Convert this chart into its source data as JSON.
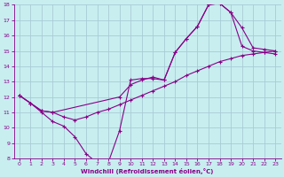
{
  "xlabel": "Windchill (Refroidissement éolien,°C)",
  "bg_color": "#c8eef0",
  "grid_color": "#a8ccd4",
  "line_color": "#880088",
  "xlim": [
    -0.5,
    23.5
  ],
  "ylim": [
    8,
    18
  ],
  "xticks": [
    0,
    1,
    2,
    3,
    4,
    5,
    6,
    7,
    8,
    9,
    10,
    11,
    12,
    13,
    14,
    15,
    16,
    17,
    18,
    19,
    20,
    21,
    22,
    23
  ],
  "yticks": [
    8,
    9,
    10,
    11,
    12,
    13,
    14,
    15,
    16,
    17,
    18
  ],
  "line1_x": [
    0,
    1,
    2,
    3,
    4,
    5,
    6,
    7,
    8,
    9,
    10,
    11,
    12,
    13,
    14,
    15,
    16,
    17,
    18,
    19,
    20,
    21,
    22,
    23
  ],
  "line1_y": [
    12.1,
    11.6,
    11.0,
    10.4,
    10.1,
    9.4,
    8.3,
    7.7,
    7.75,
    9.8,
    13.1,
    13.2,
    13.2,
    13.1,
    14.9,
    15.8,
    16.6,
    18.0,
    18.1,
    17.5,
    15.3,
    15.0,
    14.9,
    14.8
  ],
  "line2_x": [
    0,
    1,
    2,
    3,
    4,
    5,
    6,
    7,
    8,
    9,
    10,
    11,
    12,
    13,
    14,
    15,
    16,
    17,
    18,
    19,
    20,
    21,
    22,
    23
  ],
  "line2_y": [
    12.1,
    11.6,
    11.1,
    11.0,
    10.7,
    10.5,
    10.7,
    11.0,
    11.2,
    11.5,
    11.8,
    12.1,
    12.4,
    12.7,
    13.0,
    13.4,
    13.7,
    14.0,
    14.3,
    14.5,
    14.7,
    14.8,
    14.9,
    15.0
  ],
  "line3_x": [
    0,
    1,
    2,
    3,
    9,
    10,
    11,
    12,
    13,
    14,
    15,
    16,
    17,
    18,
    19,
    20,
    21,
    22,
    23
  ],
  "line3_y": [
    12.1,
    11.6,
    11.1,
    11.0,
    12.0,
    12.8,
    13.1,
    13.3,
    13.1,
    14.9,
    15.8,
    16.6,
    18.0,
    18.1,
    17.5,
    16.5,
    15.2,
    15.1,
    15.0
  ]
}
